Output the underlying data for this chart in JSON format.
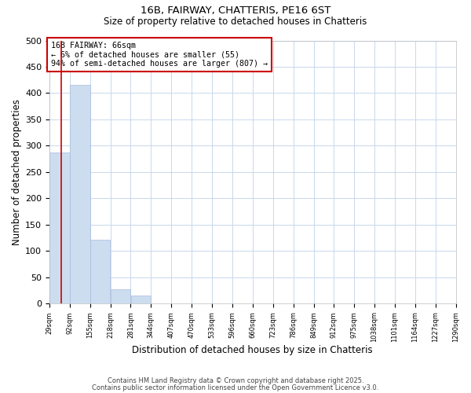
{
  "title_line1": "16B, FAIRWAY, CHATTERIS, PE16 6ST",
  "title_line2": "Size of property relative to detached houses in Chatteris",
  "xlabel": "Distribution of detached houses by size in Chatteris",
  "ylabel": "Number of detached properties",
  "bar_values": [
    288,
    415,
    122,
    27,
    15,
    1,
    0,
    0,
    0,
    0,
    0,
    0,
    0,
    0,
    0,
    0,
    0,
    0,
    0,
    0
  ],
  "bin_edges": [
    29,
    92,
    155,
    218,
    281,
    344,
    407,
    470,
    533,
    596,
    660,
    723,
    786,
    849,
    912,
    975,
    1038,
    1101,
    1164,
    1227,
    1290
  ],
  "bar_color": "#ccddf0",
  "bar_edgecolor": "#aabbdd",
  "grid_color": "#c8d8ec",
  "red_line_x": 66,
  "annotation_title": "16B FAIRWAY: 66sqm",
  "annotation_line2": "← 6% of detached houses are smaller (55)",
  "annotation_line3": "94% of semi-detached houses are larger (807) →",
  "annotation_box_edgecolor": "#cc0000",
  "ylim": [
    0,
    500
  ],
  "yticks": [
    0,
    50,
    100,
    150,
    200,
    250,
    300,
    350,
    400,
    450,
    500
  ],
  "footnote1": "Contains HM Land Registry data © Crown copyright and database right 2025.",
  "footnote2": "Contains public sector information licensed under the Open Government Licence v3.0."
}
